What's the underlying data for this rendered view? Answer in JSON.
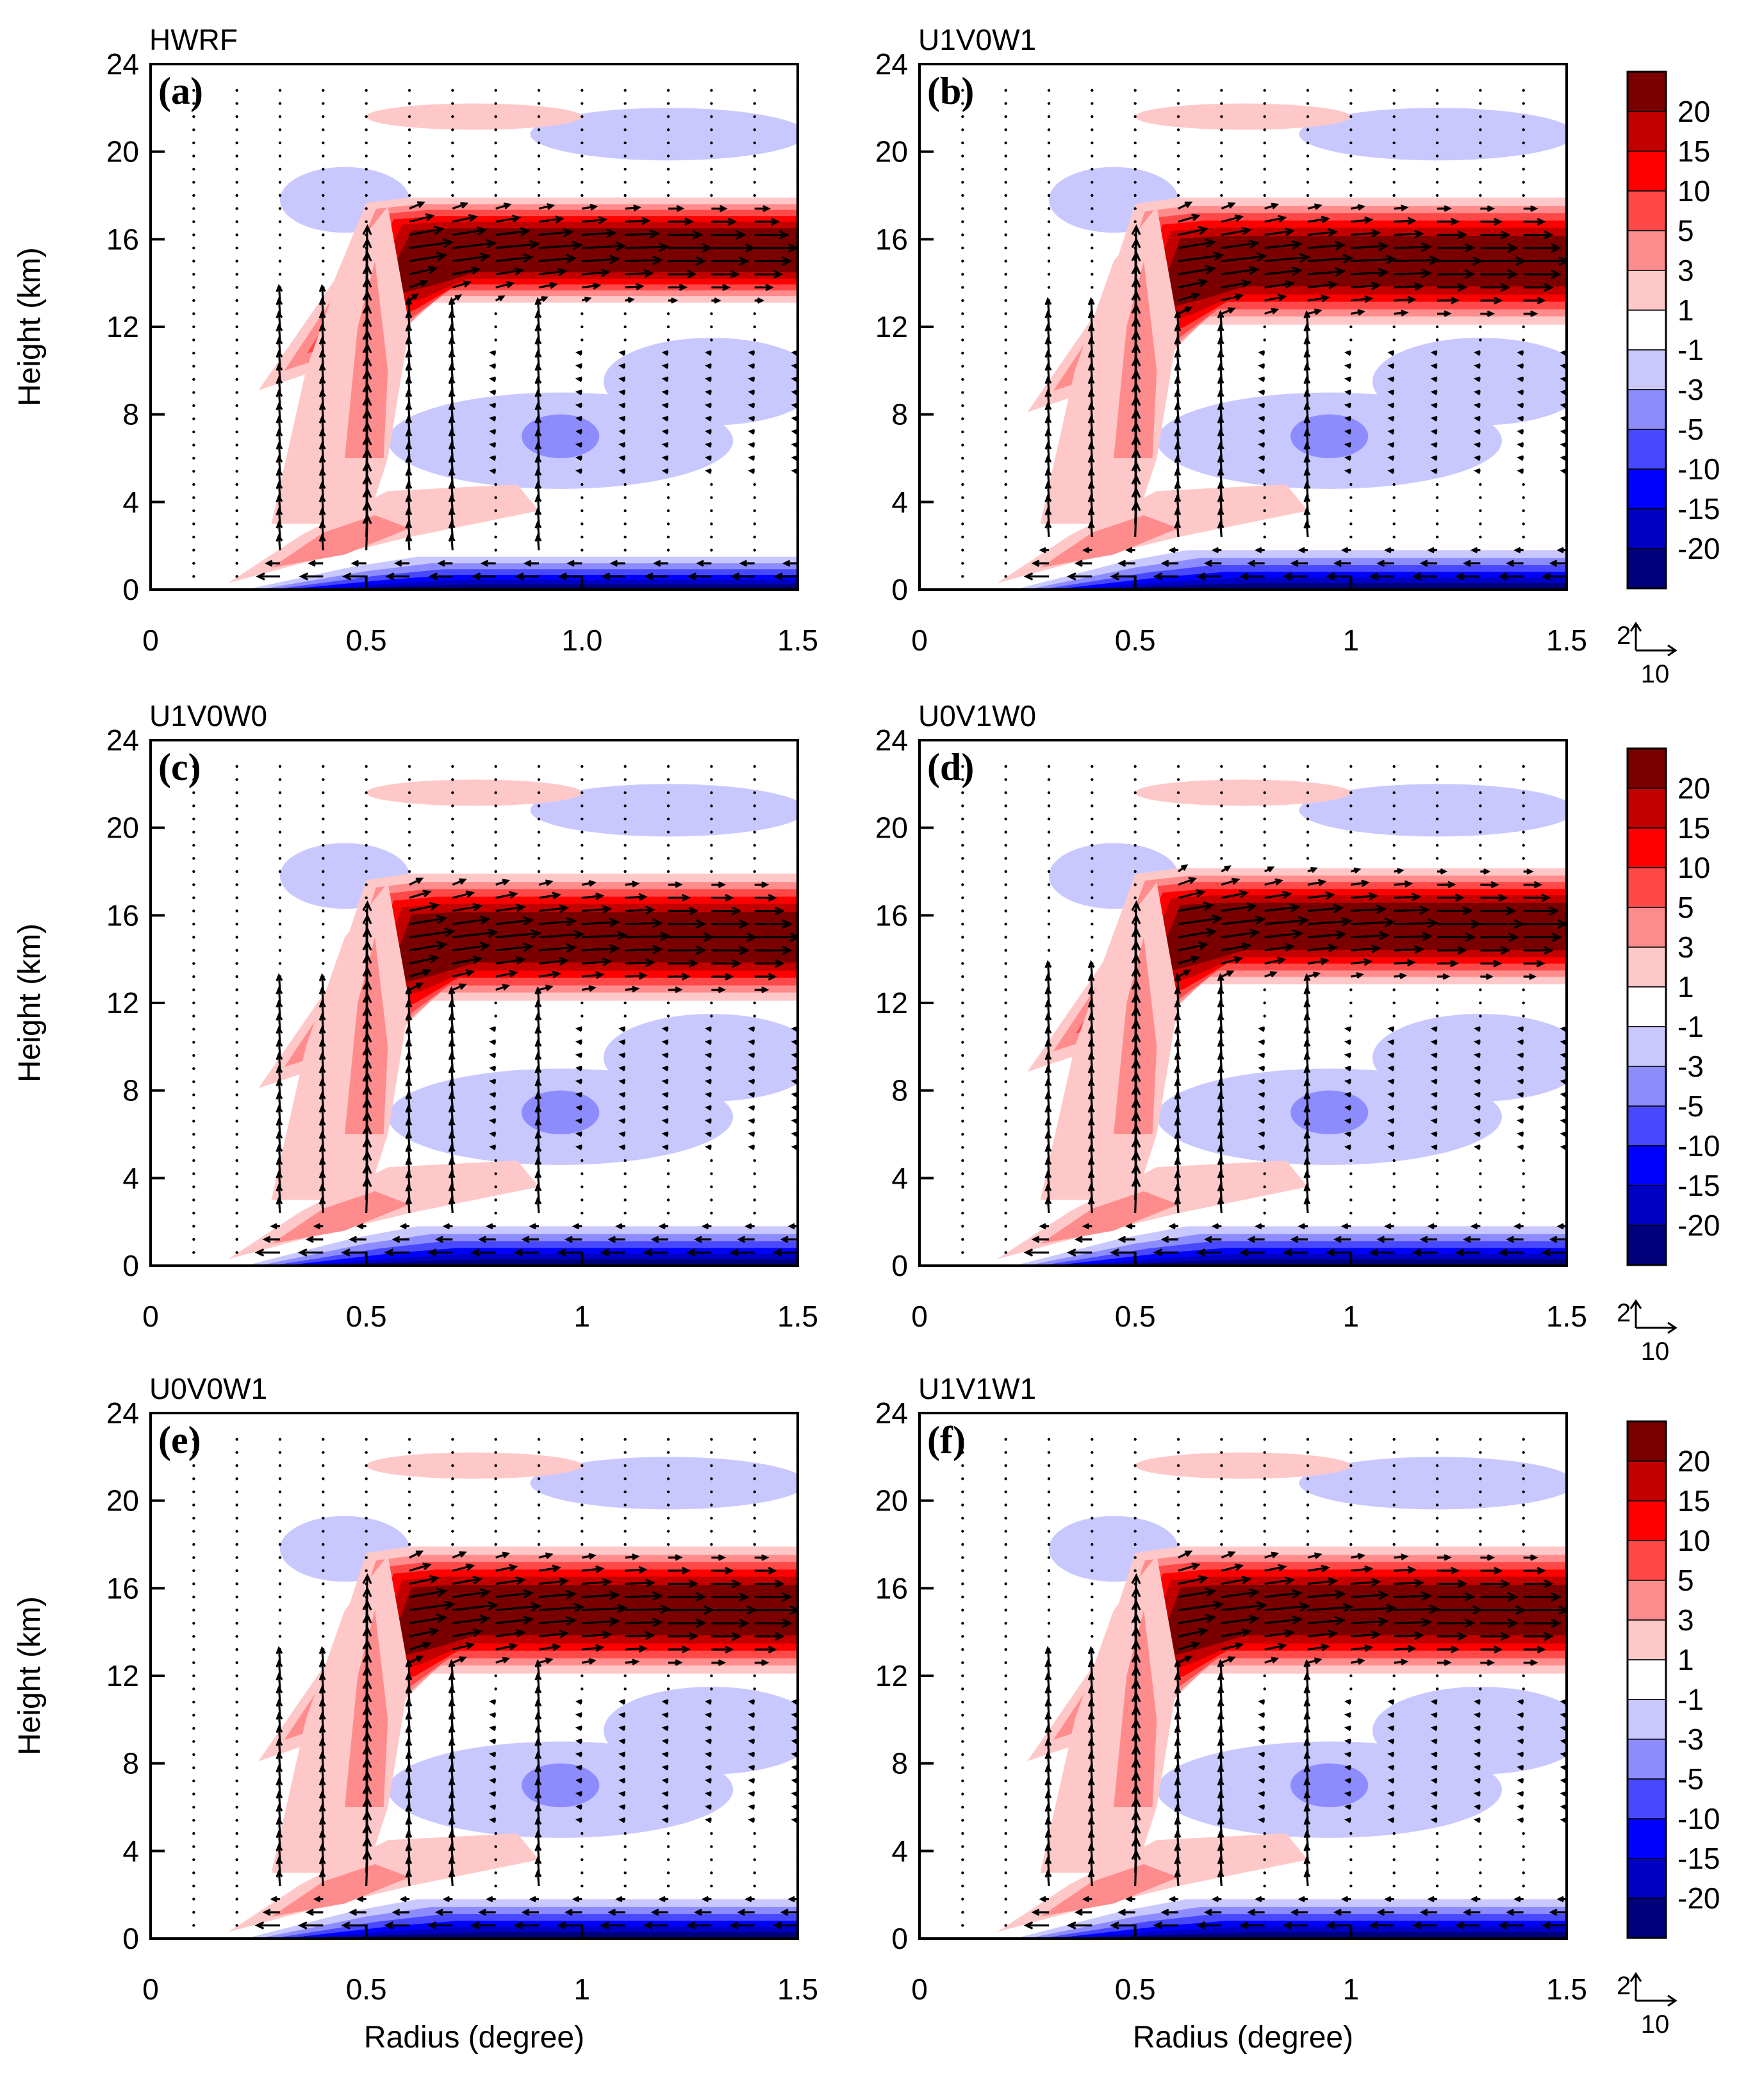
{
  "figure": {
    "ylabel": "Height (km)",
    "xlabel": "Radius (degree)"
  },
  "colorbar": {
    "labels": [
      "20",
      "15",
      "10",
      "5",
      "3",
      "1",
      "-1",
      "-3",
      "-5",
      "-10",
      "-15",
      "-20"
    ],
    "colors": [
      "#7a0000",
      "#c30000",
      "#ff0000",
      "#ff4848",
      "#ff8c8c",
      "#ffc8c8",
      "#ffffff",
      "#c8c8ff",
      "#8c8cff",
      "#4848ff",
      "#0000ff",
      "#0000c3",
      "#00007a"
    ]
  },
  "reference_vector": {
    "vertical": "2",
    "horizontal": "10"
  },
  "chart_data": [
    {
      "type": "contour",
      "id": "a",
      "title": "HWRF",
      "panel_label": "(a)",
      "x_ticks": [
        "0",
        "0.5",
        "1.0",
        "1.5"
      ],
      "y_ticks": [
        "0",
        "4",
        "8",
        "12",
        "16",
        "20",
        "24"
      ],
      "xlim": [
        0,
        1.5
      ],
      "ylim": [
        0,
        24
      ],
      "outflow_max_height_km": 15.5,
      "outflow_depth_km": 4,
      "inflow_depth_km": 1.5,
      "eyewall_radius_deg": 0.5
    },
    {
      "type": "contour",
      "id": "b",
      "title": "U1V0W1",
      "panel_label": "(b)",
      "x_ticks": [
        "0",
        "0.5",
        "1",
        "1.5"
      ],
      "y_ticks": [
        "0",
        "4",
        "8",
        "12",
        "16",
        "20",
        "24"
      ],
      "xlim": [
        0,
        1.5
      ],
      "ylim": [
        0,
        24
      ],
      "outflow_max_height_km": 15,
      "outflow_depth_km": 5,
      "inflow_depth_km": 1.8,
      "eyewall_radius_deg": 0.5
    },
    {
      "type": "contour",
      "id": "c",
      "title": "U1V0W0",
      "panel_label": "(c)",
      "x_ticks": [
        "0",
        "0.5",
        "1",
        "1.5"
      ],
      "y_ticks": [
        "0",
        "4",
        "8",
        "12",
        "16",
        "20",
        "24"
      ],
      "xlim": [
        0,
        1.5
      ],
      "ylim": [
        0,
        24
      ],
      "outflow_max_height_km": 15,
      "outflow_depth_km": 5,
      "inflow_depth_km": 1.8,
      "eyewall_radius_deg": 0.5
    },
    {
      "type": "contour",
      "id": "d",
      "title": "U0V1W0",
      "panel_label": "(d)",
      "x_ticks": [
        "0",
        "0.5",
        "1",
        "1.5"
      ],
      "y_ticks": [
        "0",
        "4",
        "8",
        "12",
        "16",
        "20",
        "24"
      ],
      "xlim": [
        0,
        1.5
      ],
      "ylim": [
        0,
        24
      ],
      "outflow_max_height_km": 15.5,
      "outflow_depth_km": 4.5,
      "inflow_depth_km": 1.8,
      "eyewall_radius_deg": 0.5
    },
    {
      "type": "contour",
      "id": "e",
      "title": "U0V0W1",
      "panel_label": "(e)",
      "x_ticks": [
        "0",
        "0.5",
        "1",
        "1.5"
      ],
      "y_ticks": [
        "0",
        "4",
        "8",
        "12",
        "16",
        "20",
        "24"
      ],
      "xlim": [
        0,
        1.5
      ],
      "ylim": [
        0,
        24
      ],
      "outflow_max_height_km": 15,
      "outflow_depth_km": 5,
      "inflow_depth_km": 1.8,
      "eyewall_radius_deg": 0.5
    },
    {
      "type": "contour",
      "id": "f",
      "title": "U1V1W1",
      "panel_label": "(f)",
      "x_ticks": [
        "0",
        "0.5",
        "1",
        "1.5"
      ],
      "y_ticks": [
        "0",
        "4",
        "8",
        "12",
        "16",
        "20",
        "24"
      ],
      "xlim": [
        0,
        1.5
      ],
      "ylim": [
        0,
        24
      ],
      "outflow_max_height_km": 15,
      "outflow_depth_km": 5,
      "inflow_depth_km": 1.8,
      "eyewall_radius_deg": 0.5
    }
  ]
}
